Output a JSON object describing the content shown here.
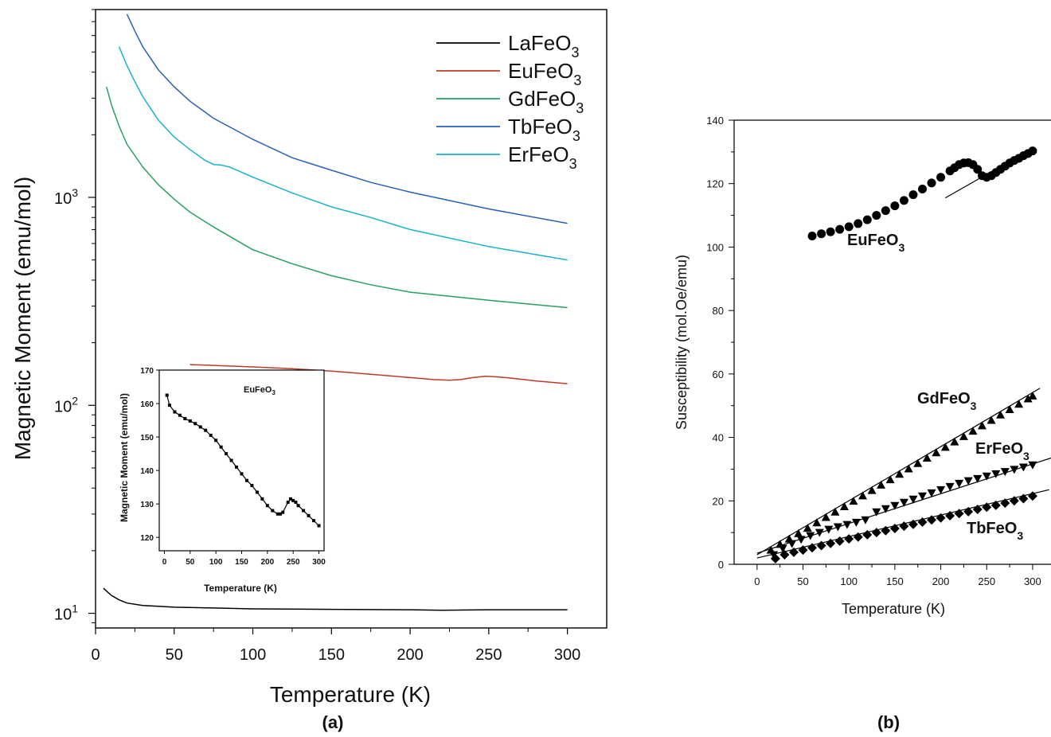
{
  "chart_data": [
    {
      "panel": "(a)",
      "type": "line",
      "xlabel": "Temperature (K)",
      "ylabel": "Magnetic Moment (emu/mol)",
      "xlim": [
        0,
        325
      ],
      "xticks": [
        0,
        50,
        100,
        150,
        200,
        250,
        300
      ],
      "y_scale": "log",
      "ylim": [
        8.5,
        8000
      ],
      "yticks": [
        {
          "value": 10,
          "base": "10",
          "exp": "1"
        },
        {
          "value": 100,
          "base": "10",
          "exp": "2"
        },
        {
          "value": 1000,
          "base": "10",
          "exp": "3"
        }
      ],
      "legend_position": "top-right",
      "series": [
        {
          "name": "LaFeO",
          "sub": "3",
          "color": "#000000",
          "x": [
            5,
            10,
            15,
            20,
            30,
            40,
            50,
            75,
            100,
            150,
            200,
            220,
            250,
            300
          ],
          "y": [
            13.2,
            12.2,
            11.6,
            11.2,
            10.9,
            10.8,
            10.7,
            10.6,
            10.5,
            10.45,
            10.4,
            10.35,
            10.4,
            10.4
          ]
        },
        {
          "name": "EuFeO",
          "sub": "3",
          "color": "#c0392b",
          "x": [
            60,
            80,
            100,
            125,
            150,
            175,
            200,
            215,
            225,
            232,
            240,
            248,
            255,
            265,
            280,
            300
          ],
          "y": [
            157,
            155,
            153,
            150,
            146,
            141,
            136,
            133,
            132,
            133,
            136,
            138,
            137,
            135,
            131,
            127
          ]
        },
        {
          "name": "GdFeO",
          "sub": "3",
          "color": "#27a062",
          "x": [
            7,
            10,
            15,
            20,
            30,
            40,
            50,
            60,
            75,
            100,
            125,
            150,
            175,
            200,
            250,
            300
          ],
          "y": [
            3400,
            2800,
            2200,
            1800,
            1400,
            1150,
            980,
            850,
            720,
            560,
            480,
            420,
            380,
            350,
            320,
            295
          ]
        },
        {
          "name": "TbFeO",
          "sub": "3",
          "color": "#2a5fb8",
          "x": [
            20,
            25,
            30,
            40,
            50,
            60,
            75,
            100,
            125,
            150,
            175,
            200,
            250,
            300
          ],
          "y": [
            7600,
            6300,
            5300,
            4100,
            3400,
            2900,
            2400,
            1900,
            1550,
            1350,
            1180,
            1060,
            880,
            750
          ]
        },
        {
          "name": "ErFeO",
          "sub": "3",
          "color": "#17b3cc",
          "x": [
            15,
            20,
            25,
            30,
            40,
            50,
            60,
            70,
            75,
            80,
            85,
            90,
            100,
            125,
            150,
            175,
            200,
            250,
            300
          ],
          "y": [
            5300,
            4300,
            3600,
            3050,
            2350,
            1950,
            1700,
            1500,
            1440,
            1430,
            1400,
            1350,
            1250,
            1050,
            900,
            800,
            700,
            580,
            500
          ]
        }
      ]
    },
    {
      "panel": "(a) inset",
      "type": "line",
      "title": "EuFeO",
      "title_sub": "3",
      "xlabel": "Temperature (K)",
      "ylabel": "Magnetic Moment (emu/mol)",
      "xlim": [
        -10,
        310
      ],
      "xticks": [
        0,
        50,
        100,
        150,
        200,
        250,
        300
      ],
      "ylim": [
        116,
        170
      ],
      "yticks": [
        120,
        130,
        140,
        150,
        160,
        170
      ],
      "series": [
        {
          "name": "EuFeO3 inset",
          "marker": "square",
          "color": "#000000",
          "x": [
            5,
            10,
            20,
            30,
            40,
            50,
            60,
            70,
            80,
            90,
            100,
            110,
            120,
            130,
            140,
            150,
            160,
            170,
            180,
            190,
            200,
            210,
            220,
            225,
            230,
            240,
            245,
            250,
            255,
            260,
            270,
            280,
            290,
            300
          ],
          "y": [
            162.5,
            159.5,
            157.5,
            156.5,
            155.5,
            154.8,
            154,
            153,
            152,
            150.5,
            149,
            147,
            145,
            143,
            141,
            139,
            137,
            135.5,
            133.5,
            131.5,
            129.5,
            128,
            127,
            127,
            127.5,
            130.5,
            131.5,
            131,
            130.5,
            129.5,
            128,
            126.5,
            125,
            123.5
          ]
        }
      ]
    },
    {
      "panel": "(b)",
      "type": "scatter",
      "xlabel": "Temperature (K)",
      "ylabel": "Susceptibility (mol.Oe/emu)",
      "xlim": [
        -25,
        320
      ],
      "xticks": [
        0,
        50,
        100,
        150,
        200,
        250,
        300
      ],
      "ylim": [
        0,
        140
      ],
      "yticks": [
        0,
        20,
        40,
        60,
        80,
        100,
        120,
        140
      ],
      "series": [
        {
          "name": "EuFeO",
          "sub": "3",
          "marker": "circle",
          "color": "#000000",
          "x": [
            60,
            70,
            80,
            90,
            100,
            110,
            120,
            130,
            140,
            150,
            160,
            170,
            180,
            190,
            200,
            210,
            215,
            220,
            225,
            230,
            235,
            240,
            245,
            250,
            255,
            260,
            265,
            270,
            275,
            280,
            285,
            290,
            295,
            300
          ],
          "y": [
            103.5,
            104.2,
            104.8,
            105.6,
            106.4,
            107.4,
            108.6,
            110,
            111.5,
            113,
            114.7,
            116.5,
            118.3,
            120.2,
            122,
            124,
            125,
            126,
            126.5,
            126.6,
            126,
            124.5,
            122.5,
            122,
            122.5,
            123.5,
            124.5,
            125.5,
            126.5,
            127.3,
            128,
            128.8,
            129.5,
            130.3
          ]
        },
        {
          "name": "GdFeO",
          "sub": "3",
          "marker": "triangle-up",
          "color": "#000000",
          "x": [
            15,
            25,
            35,
            45,
            55,
            65,
            75,
            85,
            95,
            105,
            115,
            125,
            135,
            145,
            155,
            165,
            175,
            185,
            195,
            205,
            215,
            225,
            235,
            245,
            255,
            265,
            275,
            285,
            295,
            300
          ],
          "y": [
            4.5,
            6.3,
            8,
            9.7,
            11.4,
            13.1,
            14.8,
            16.5,
            18.2,
            19.9,
            21.6,
            23.3,
            25,
            26.7,
            28.4,
            30.1,
            31.8,
            33.5,
            35.2,
            36.9,
            38.6,
            40.3,
            42,
            43.7,
            45.4,
            47.1,
            48.8,
            50.5,
            52.2,
            53.1
          ]
        },
        {
          "name": "ErFeO",
          "sub": "3",
          "marker": "triangle-down",
          "color": "#000000",
          "x": [
            18,
            28,
            38,
            48,
            58,
            68,
            78,
            88,
            98,
            108,
            118,
            130,
            140,
            150,
            160,
            170,
            180,
            190,
            200,
            210,
            220,
            230,
            240,
            250,
            260,
            270,
            280,
            290,
            300
          ],
          "y": [
            3,
            5,
            6.5,
            7.8,
            9,
            10,
            11,
            11.8,
            12.5,
            13.2,
            14,
            16.5,
            17.5,
            18.5,
            19.5,
            20.5,
            21.5,
            22.5,
            23.5,
            24.5,
            25.5,
            26.3,
            27,
            27.8,
            28.5,
            29.2,
            29.9,
            30.6,
            31.3
          ]
        },
        {
          "name": "TbFeO",
          "sub": "3",
          "marker": "diamond",
          "color": "#000000",
          "x": [
            20,
            30,
            40,
            50,
            60,
            70,
            80,
            90,
            100,
            110,
            120,
            130,
            140,
            150,
            160,
            170,
            180,
            190,
            200,
            210,
            220,
            230,
            240,
            250,
            260,
            270,
            280,
            290,
            300
          ],
          "y": [
            1.8,
            3,
            3.8,
            4.5,
            5.2,
            5.9,
            6.6,
            7.3,
            8,
            8.6,
            9.3,
            10,
            10.6,
            11.3,
            12,
            12.6,
            13.3,
            14,
            14.6,
            15.3,
            16,
            16.6,
            17.3,
            18,
            18.6,
            19.3,
            20,
            20.7,
            21.5
          ]
        }
      ],
      "fit_lines": [
        {
          "name": "EuFeO3 fit",
          "x": [
            205,
            302
          ],
          "y": [
            115.5,
            131.5
          ]
        },
        {
          "name": "GdFeO3 fit",
          "x": [
            0,
            308
          ],
          "y": [
            3,
            55.5
          ]
        },
        {
          "name": "ErFeO3 fit",
          "x": [
            0,
            320
          ],
          "y": [
            3.5,
            33.5
          ]
        },
        {
          "name": "TbFeO3 fit",
          "x": [
            0,
            318
          ],
          "y": [
            2,
            23.5
          ]
        }
      ]
    }
  ],
  "labels": {
    "panel_a": "(a)",
    "panel_b": "(b)"
  }
}
